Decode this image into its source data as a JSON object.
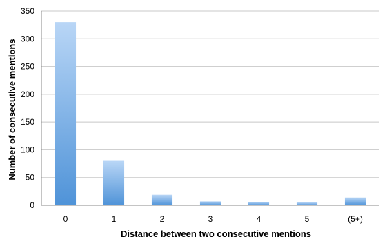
{
  "chart_data": {
    "type": "bar",
    "title": "",
    "xlabel": "Distance between two consecutive mentions",
    "ylabel": "Number of consecutive mentions",
    "categories": [
      "0",
      "1",
      "2",
      "3",
      "4",
      "5",
      "(5+)"
    ],
    "values": [
      330,
      80,
      19,
      7,
      6,
      5,
      14
    ],
    "ylim": [
      0,
      350
    ],
    "yticks": [
      0,
      50,
      100,
      150,
      200,
      250,
      300,
      350
    ],
    "grid": true,
    "legend": "none",
    "colors": {
      "bar_top": "#b9d6f6",
      "bar_bottom": "#4f93d8",
      "grid": "#c8c8c8",
      "axis": "#888888"
    }
  }
}
